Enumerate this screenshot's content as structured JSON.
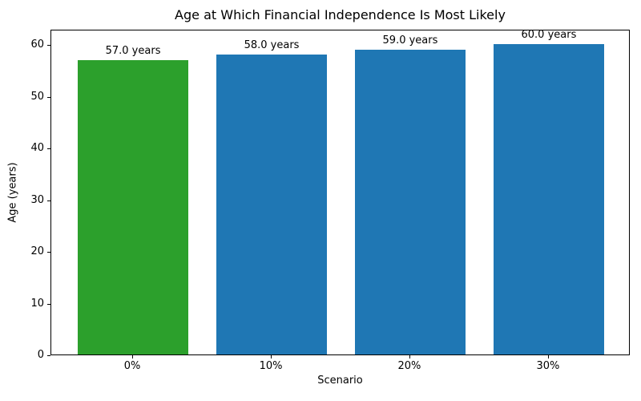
{
  "chart_data": {
    "type": "bar",
    "title": "Age at Which Financial Independence Is Most Likely",
    "xlabel": "Scenario",
    "ylabel": "Age (years)",
    "categories": [
      "0%",
      "10%",
      "20%",
      "30%"
    ],
    "values": [
      57.0,
      58.0,
      59.0,
      60.0
    ],
    "bar_labels": [
      "57.0 years",
      "58.0 years",
      "59.0 years",
      "60.0 years"
    ],
    "bar_colors": [
      "#2ca02c",
      "#1f77b4",
      "#1f77b4",
      "#1f77b4"
    ],
    "yticks": [
      0,
      10,
      20,
      30,
      40,
      50,
      60
    ],
    "ylim": [
      0,
      63
    ],
    "grid": false,
    "legend": "none",
    "background_color": "#ffffff",
    "axis_color": "#000000"
  }
}
